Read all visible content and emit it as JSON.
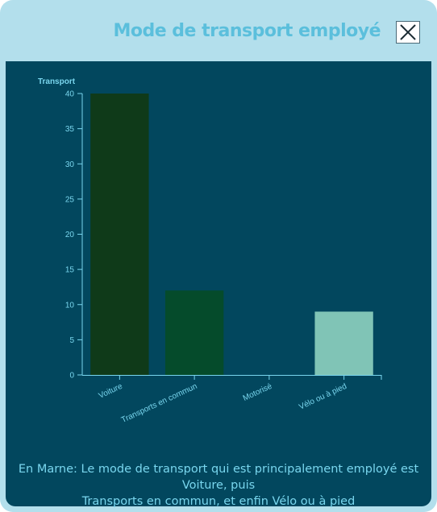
{
  "modal": {
    "title": "Mode de transport employé",
    "close_icon": "close-icon"
  },
  "colors": {
    "frame": "#b3dfec",
    "panel": "#02475e",
    "title": "#5bbfdc",
    "axis": "#79d6ee"
  },
  "chart_data": {
    "type": "bar",
    "ylabel": "Transport",
    "xlabel": "",
    "title": "",
    "categories": [
      "Voiture",
      "Transports en commun",
      "Motorisé",
      "Vélo ou à pied"
    ],
    "values": [
      40,
      12,
      0,
      9
    ],
    "colors": [
      "#0f3a19",
      "#054b2b",
      "#1f7a5c",
      "#80c4b6"
    ],
    "ylim": [
      0,
      40
    ],
    "yticks": [
      0,
      5,
      10,
      15,
      20,
      25,
      30,
      35,
      40
    ],
    "grid": false,
    "legend": "none"
  },
  "caption": {
    "line1": "En Marne: Le mode de transport qui est principalement employé est Voiture, puis",
    "line2": "Transports en commun, et enfin Vélo ou à pied"
  }
}
